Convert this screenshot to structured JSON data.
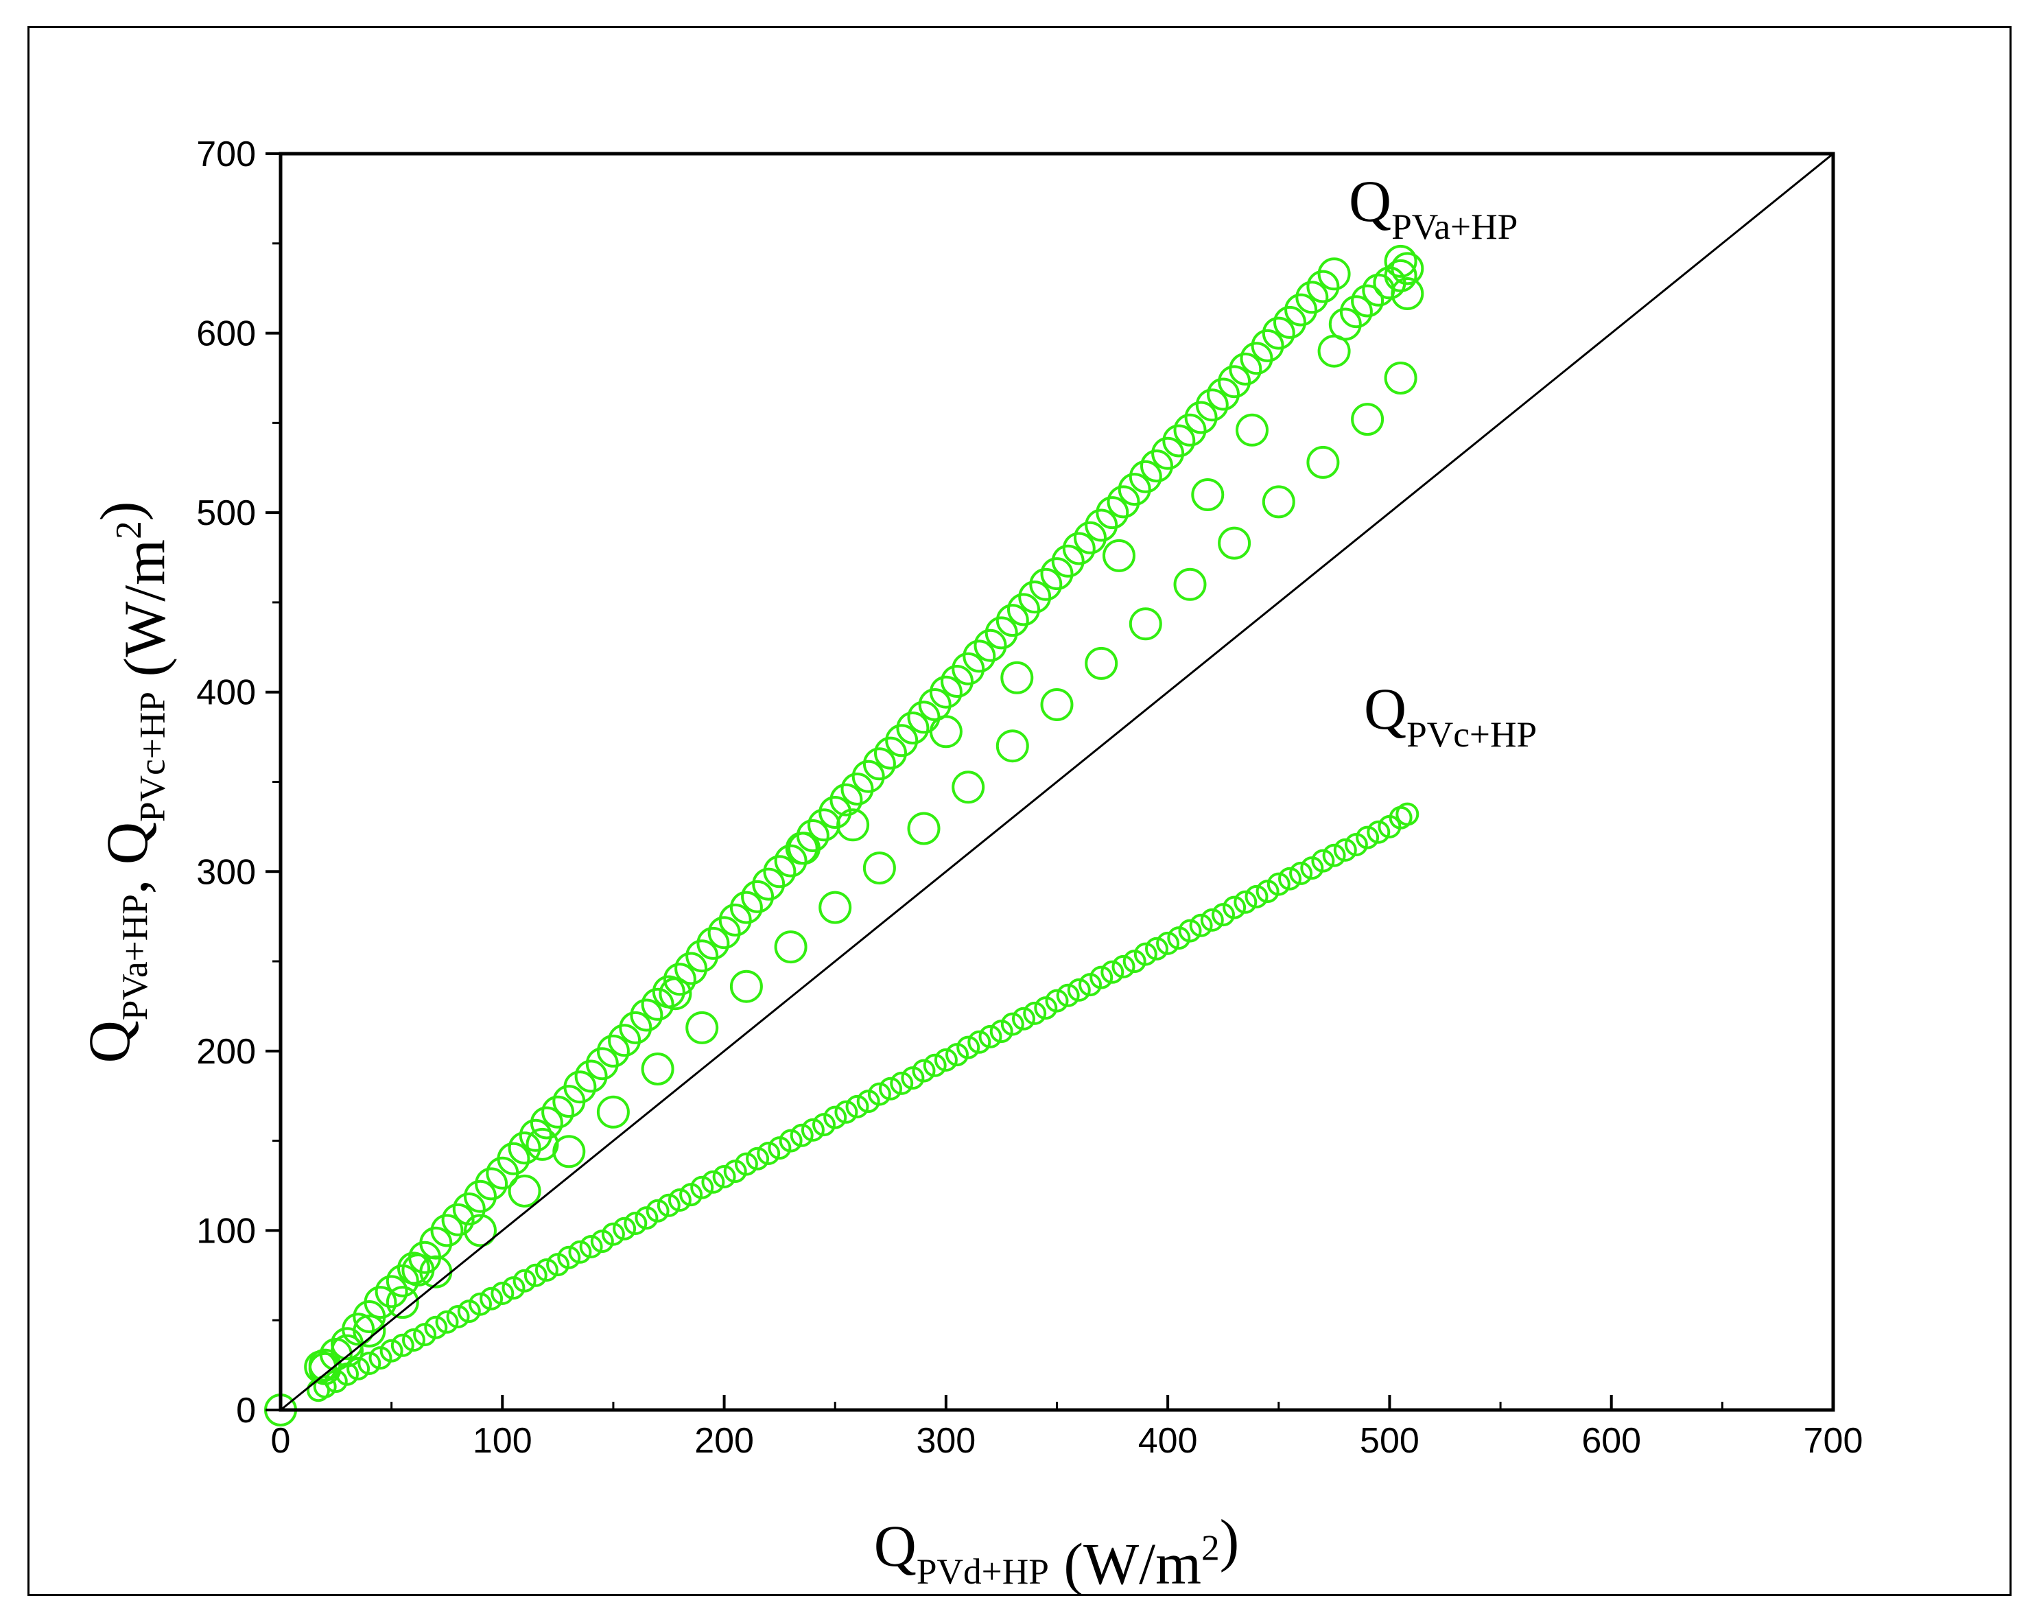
{
  "chart_data": {
    "type": "scatter",
    "xlabel": {
      "main": "Q",
      "sub": "PVd+HP",
      "unit": " (W/m",
      "sup": "2",
      "close": ")"
    },
    "ylabel": {
      "parts": [
        {
          "main": "Q",
          "sub": "PVa+HP"
        },
        {
          "main": ", "
        },
        {
          "main": "Q",
          "sub": "PVc+HP"
        },
        {
          "main": "  (W/m",
          "sup": "2",
          "close": ")"
        }
      ]
    },
    "xlim": [
      0,
      700
    ],
    "ylim": [
      0,
      700
    ],
    "x_ticks": [
      "0",
      "100",
      "200",
      "300",
      "400",
      "500",
      "600",
      "700"
    ],
    "y_ticks": [
      "0",
      "100",
      "200",
      "300",
      "400",
      "500",
      "600",
      "700"
    ],
    "grid": false,
    "reference_line": {
      "from": [
        0,
        0
      ],
      "to": [
        700,
        700
      ],
      "color": "#000000"
    },
    "marker_color": "#33ee11",
    "annotations": [
      {
        "main": "Q",
        "sub": "PVa+HP"
      },
      {
        "main": "Q",
        "sub": "PVc+HP"
      }
    ],
    "series": [
      {
        "label_index": 0,
        "points": [
          [
            0,
            0
          ],
          [
            18,
            24
          ],
          [
            20,
            25
          ],
          [
            25,
            31
          ],
          [
            30,
            37
          ],
          [
            35,
            45
          ],
          [
            40,
            52
          ],
          [
            45,
            60
          ],
          [
            50,
            66
          ],
          [
            55,
            72
          ],
          [
            60,
            79
          ],
          [
            65,
            85
          ],
          [
            70,
            93
          ],
          [
            75,
            100
          ],
          [
            80,
            106
          ],
          [
            85,
            112
          ],
          [
            90,
            119
          ],
          [
            95,
            126
          ],
          [
            100,
            132
          ],
          [
            105,
            140
          ],
          [
            110,
            146
          ],
          [
            115,
            153
          ],
          [
            120,
            160
          ],
          [
            125,
            166
          ],
          [
            130,
            172
          ],
          [
            135,
            180
          ],
          [
            140,
            186
          ],
          [
            145,
            193
          ],
          [
            150,
            200
          ],
          [
            155,
            206
          ],
          [
            160,
            213
          ],
          [
            165,
            220
          ],
          [
            170,
            226
          ],
          [
            175,
            233
          ],
          [
            180,
            240
          ],
          [
            185,
            246
          ],
          [
            190,
            253
          ],
          [
            195,
            260
          ],
          [
            200,
            266
          ],
          [
            205,
            273
          ],
          [
            210,
            280
          ],
          [
            215,
            286
          ],
          [
            220,
            293
          ],
          [
            225,
            300
          ],
          [
            230,
            306
          ],
          [
            235,
            313
          ],
          [
            240,
            320
          ],
          [
            245,
            326
          ],
          [
            250,
            333
          ],
          [
            255,
            340
          ],
          [
            260,
            346
          ],
          [
            265,
            353
          ],
          [
            270,
            360
          ],
          [
            275,
            366
          ],
          [
            280,
            373
          ],
          [
            285,
            380
          ],
          [
            290,
            386
          ],
          [
            295,
            393
          ],
          [
            300,
            400
          ],
          [
            305,
            406
          ],
          [
            310,
            413
          ],
          [
            315,
            420
          ],
          [
            320,
            426
          ],
          [
            325,
            433
          ],
          [
            330,
            440
          ],
          [
            335,
            446
          ],
          [
            340,
            453
          ],
          [
            345,
            460
          ],
          [
            350,
            466
          ],
          [
            355,
            473
          ],
          [
            360,
            480
          ],
          [
            365,
            486
          ],
          [
            370,
            493
          ],
          [
            375,
            500
          ],
          [
            380,
            506
          ],
          [
            385,
            513
          ],
          [
            390,
            520
          ],
          [
            395,
            526
          ],
          [
            400,
            533
          ],
          [
            405,
            540
          ],
          [
            410,
            546
          ],
          [
            415,
            553
          ],
          [
            420,
            560
          ],
          [
            425,
            566
          ],
          [
            430,
            573
          ],
          [
            435,
            580
          ],
          [
            440,
            586
          ],
          [
            445,
            593
          ],
          [
            450,
            600
          ],
          [
            455,
            606
          ],
          [
            460,
            613
          ],
          [
            465,
            620
          ],
          [
            470,
            626
          ],
          [
            475,
            633
          ],
          [
            480,
            605
          ],
          [
            485,
            612
          ],
          [
            490,
            618
          ],
          [
            495,
            624
          ],
          [
            500,
            628
          ],
          [
            505,
            632
          ],
          [
            508,
            636
          ],
          [
            20,
            23
          ],
          [
            30,
            33
          ],
          [
            40,
            44
          ],
          [
            55,
            60
          ],
          [
            70,
            77
          ],
          [
            90,
            100
          ],
          [
            110,
            122
          ],
          [
            130,
            144
          ],
          [
            150,
            166
          ],
          [
            170,
            190
          ],
          [
            190,
            213
          ],
          [
            210,
            236
          ],
          [
            230,
            258
          ],
          [
            250,
            280
          ],
          [
            270,
            302
          ],
          [
            290,
            324
          ],
          [
            310,
            347
          ],
          [
            330,
            370
          ],
          [
            350,
            393
          ],
          [
            370,
            416
          ],
          [
            390,
            438
          ],
          [
            410,
            460
          ],
          [
            430,
            483
          ],
          [
            450,
            506
          ],
          [
            470,
            528
          ],
          [
            490,
            552
          ],
          [
            505,
            575
          ],
          [
            62,
            78
          ],
          [
            118,
            148
          ],
          [
            178,
            232
          ],
          [
            236,
            313
          ],
          [
            258,
            326
          ],
          [
            300,
            378
          ],
          [
            332,
            408
          ],
          [
            378,
            476
          ],
          [
            418,
            510
          ],
          [
            438,
            546
          ],
          [
            475,
            590
          ],
          [
            505,
            640
          ],
          [
            500,
            628
          ],
          [
            508,
            622
          ]
        ]
      },
      {
        "label_index": 1,
        "points": [
          [
            17,
            11
          ],
          [
            20,
            13
          ],
          [
            25,
            16
          ],
          [
            30,
            20
          ],
          [
            35,
            23
          ],
          [
            40,
            26
          ],
          [
            45,
            29
          ],
          [
            50,
            33
          ],
          [
            55,
            36
          ],
          [
            60,
            39
          ],
          [
            65,
            42
          ],
          [
            70,
            46
          ],
          [
            75,
            49
          ],
          [
            80,
            52
          ],
          [
            85,
            55
          ],
          [
            90,
            59
          ],
          [
            95,
            62
          ],
          [
            100,
            65
          ],
          [
            105,
            68
          ],
          [
            110,
            72
          ],
          [
            115,
            75
          ],
          [
            120,
            78
          ],
          [
            125,
            81
          ],
          [
            130,
            85
          ],
          [
            135,
            88
          ],
          [
            140,
            91
          ],
          [
            145,
            94
          ],
          [
            150,
            98
          ],
          [
            155,
            101
          ],
          [
            160,
            104
          ],
          [
            165,
            107
          ],
          [
            170,
            111
          ],
          [
            175,
            114
          ],
          [
            180,
            117
          ],
          [
            185,
            120
          ],
          [
            190,
            124
          ],
          [
            195,
            127
          ],
          [
            200,
            130
          ],
          [
            205,
            133
          ],
          [
            210,
            137
          ],
          [
            215,
            140
          ],
          [
            220,
            143
          ],
          [
            225,
            146
          ],
          [
            230,
            150
          ],
          [
            235,
            153
          ],
          [
            240,
            156
          ],
          [
            245,
            159
          ],
          [
            250,
            163
          ],
          [
            255,
            166
          ],
          [
            260,
            169
          ],
          [
            265,
            172
          ],
          [
            270,
            176
          ],
          [
            275,
            179
          ],
          [
            280,
            182
          ],
          [
            285,
            185
          ],
          [
            290,
            189
          ],
          [
            295,
            192
          ],
          [
            300,
            195
          ],
          [
            305,
            198
          ],
          [
            310,
            202
          ],
          [
            315,
            205
          ],
          [
            320,
            208
          ],
          [
            325,
            211
          ],
          [
            330,
            215
          ],
          [
            335,
            218
          ],
          [
            340,
            221
          ],
          [
            345,
            224
          ],
          [
            350,
            228
          ],
          [
            355,
            231
          ],
          [
            360,
            234
          ],
          [
            365,
            237
          ],
          [
            370,
            241
          ],
          [
            375,
            244
          ],
          [
            380,
            247
          ],
          [
            385,
            250
          ],
          [
            390,
            254
          ],
          [
            395,
            257
          ],
          [
            400,
            260
          ],
          [
            405,
            263
          ],
          [
            410,
            267
          ],
          [
            415,
            270
          ],
          [
            420,
            273
          ],
          [
            425,
            276
          ],
          [
            430,
            280
          ],
          [
            435,
            283
          ],
          [
            440,
            286
          ],
          [
            445,
            289
          ],
          [
            450,
            293
          ],
          [
            455,
            296
          ],
          [
            460,
            299
          ],
          [
            465,
            302
          ],
          [
            470,
            306
          ],
          [
            475,
            309
          ],
          [
            480,
            312
          ],
          [
            485,
            315
          ],
          [
            490,
            319
          ],
          [
            495,
            322
          ],
          [
            500,
            325
          ],
          [
            505,
            330
          ],
          [
            508,
            332
          ]
        ]
      }
    ]
  }
}
